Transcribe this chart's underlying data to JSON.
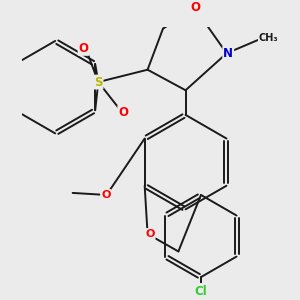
{
  "background_color": "#ebebeb",
  "bond_color": "#1a1a1a",
  "bond_width": 1.4,
  "atom_colors": {
    "S": "#b8b800",
    "O": "#ff0000",
    "N": "#0000cc",
    "Cl": "#33cc33",
    "C": "#1a1a1a"
  },
  "font_size_atom": 8.5,
  "figsize": [
    3.0,
    3.0
  ],
  "dpi": 100,
  "xlim": [
    -1.6,
    1.6
  ],
  "ylim": [
    -1.9,
    1.3
  ]
}
